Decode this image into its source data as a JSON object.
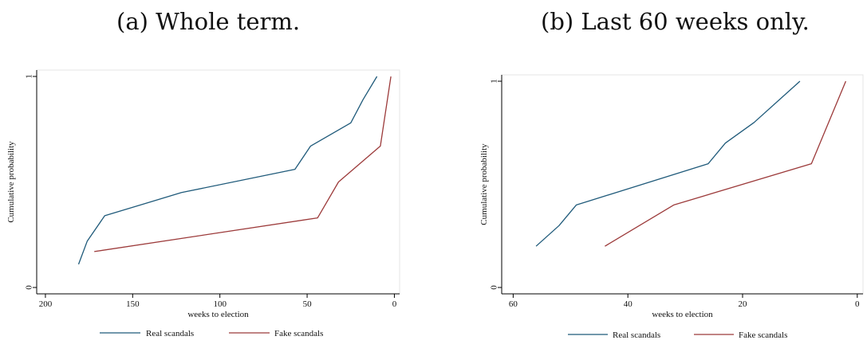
{
  "panels": {
    "a": {
      "title": "(a) Whole term."
    },
    "b": {
      "title": "(b) Last 60 weeks only."
    }
  },
  "chart_data": [
    {
      "type": "line",
      "title": "(a) Whole term.",
      "xlabel": "weeks to election",
      "ylabel": "Cumulative probability",
      "xlim": [
        205,
        -3
      ],
      "ylim": [
        0,
        1
      ],
      "x_ticks": [
        200,
        150,
        100,
        50,
        0
      ],
      "y_ticks": [
        0,
        1
      ],
      "grid": false,
      "legend_position": "bottom",
      "colors": {
        "real": "#1f5a7a",
        "fake": "#9c3a3a"
      },
      "series": [
        {
          "name": "Real scandals",
          "x": [
            181,
            176,
            166,
            122,
            57,
            48,
            25,
            18,
            10
          ],
          "y": [
            0.11,
            0.22,
            0.34,
            0.45,
            0.56,
            0.67,
            0.78,
            0.89,
            1.0
          ]
        },
        {
          "name": "Fake scandals",
          "x": [
            172,
            44,
            32,
            8,
            2
          ],
          "y": [
            0.17,
            0.33,
            0.5,
            0.67,
            1.0
          ]
        }
      ]
    },
    {
      "type": "line",
      "title": "(b) Last 60 weeks only.",
      "xlabel": "weeks to election",
      "ylabel": "Cumulative probability",
      "xlim": [
        62,
        -1
      ],
      "ylim": [
        0,
        1
      ],
      "x_ticks": [
        60,
        40,
        20,
        0
      ],
      "y_ticks": [
        0,
        1
      ],
      "grid": false,
      "legend_position": "bottom",
      "colors": {
        "real": "#1f5a7a",
        "fake": "#9c3a3a"
      },
      "series": [
        {
          "name": "Real scandals",
          "x": [
            56,
            52,
            49,
            26,
            23,
            18,
            10
          ],
          "y": [
            0.2,
            0.3,
            0.4,
            0.6,
            0.7,
            0.8,
            1.0
          ]
        },
        {
          "name": "Fake scandals",
          "x": [
            44,
            32,
            8,
            2
          ],
          "y": [
            0.2,
            0.4,
            0.6,
            1.0
          ]
        }
      ]
    }
  ]
}
